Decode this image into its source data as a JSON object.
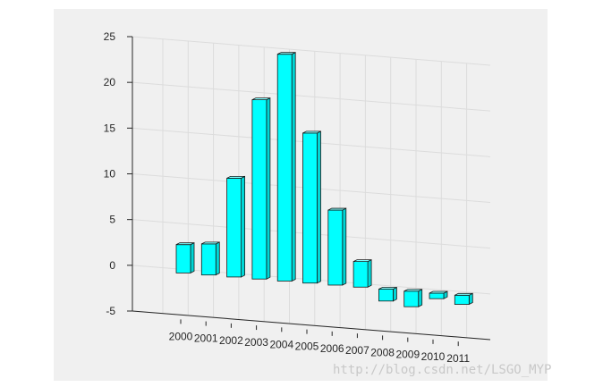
{
  "chart_data": {
    "type": "bar",
    "categories": [
      "2000",
      "2001",
      "2002",
      "2003",
      "2004",
      "2005",
      "2006",
      "2007",
      "2008",
      "2009",
      "2010",
      "2011"
    ],
    "values": [
      3.1,
      3.4,
      10.8,
      19.6,
      24.8,
      16.4,
      8.2,
      2.8,
      -1.3,
      -1.7,
      -0.6,
      -1.0
    ],
    "title": "",
    "xlabel": "",
    "ylabel": "",
    "ylim": [
      -5,
      25
    ],
    "yticks": [
      "-5",
      "0",
      "5",
      "10",
      "15",
      "20",
      "25"
    ],
    "grid": true,
    "legend": "none",
    "style": "3d-bar",
    "bar_color": "#00ffff",
    "background_color": "#f0f0f0"
  },
  "watermark": "http://blog.csdn.net/LSGO_MYP"
}
